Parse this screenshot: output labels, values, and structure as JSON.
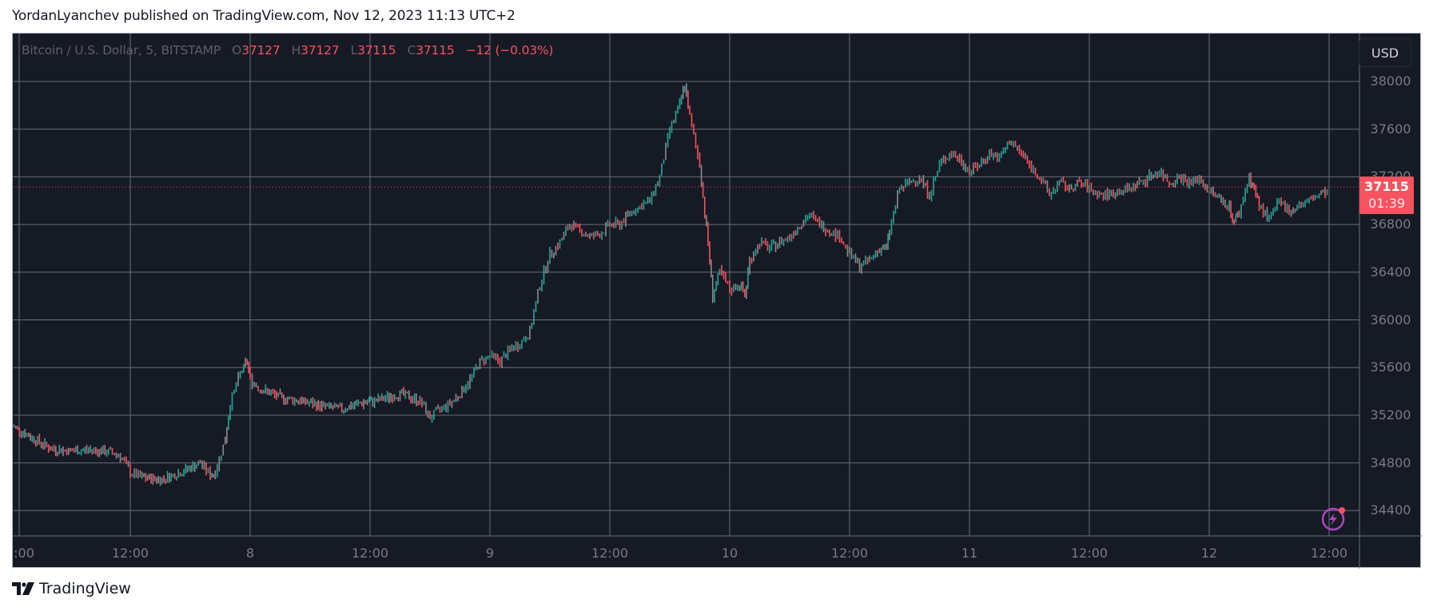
{
  "publisher_line": "YordanLyanchev published on TradingView.com, Nov 12, 2023 11:13 UTC+2",
  "legend": {
    "symbol": "Bitcoin / U.S. Dollar, 5, BITSTAMP",
    "open_key": "O",
    "open": "37127",
    "high_key": "H",
    "high": "37127",
    "low_key": "L",
    "low": "37115",
    "close_key": "C",
    "close": "37115",
    "change": "−12 (−0.03%)"
  },
  "currency_button": "USD",
  "last_price_tag": {
    "price": "37115",
    "countdown": "01:39"
  },
  "footer_brand": "TradingView",
  "icons": {
    "logo": "tradingview-logo-icon",
    "lightning": "lightning-icon"
  },
  "colors": {
    "background": "#161a25",
    "grid": "#6b6f7a",
    "up": "#26a69a",
    "down": "#f7525f",
    "neutral": "#8c8c8c",
    "axis_text": "#787b86",
    "price_tag": "#f7525f",
    "lightning": "#ab47bc"
  },
  "chart_data": {
    "type": "candlestick",
    "title": "Bitcoin / U.S. Dollar, 5, BITSTAMP",
    "interval": "5",
    "exchange": "BITSTAMP",
    "currency": "USD",
    "xlabel": "",
    "ylabel": "",
    "y_ticks": [
      38000,
      37600,
      37200,
      36800,
      36400,
      36000,
      35600,
      35200,
      34800,
      34400
    ],
    "ylim": [
      34200,
      38350
    ],
    "x_ticks": [
      ":00",
      "12:00",
      "8",
      "12:00",
      "9",
      "12:00",
      "10",
      "12:00",
      "11",
      "12:00",
      "12",
      "12:00"
    ],
    "grid": true,
    "last": {
      "open": 37127,
      "high": 37127,
      "low": 37115,
      "close": 37115,
      "change": -12,
      "change_pct": -0.03
    },
    "current_price": 37115,
    "approx_path_hours_from_nov7_0000": [
      [
        0,
        35120
      ],
      [
        2,
        35020
      ],
      [
        4,
        34920
      ],
      [
        6,
        34900
      ],
      [
        8,
        34910
      ],
      [
        10,
        34890
      ],
      [
        11,
        34860
      ],
      [
        12,
        34720
      ],
      [
        13,
        34680
      ],
      [
        15,
        34660
      ],
      [
        17,
        34720
      ],
      [
        19,
        34800
      ],
      [
        20,
        34700
      ],
      [
        20.5,
        34720
      ],
      [
        21.5,
        35000
      ],
      [
        22,
        35300
      ],
      [
        23,
        35550
      ],
      [
        23.7,
        35650
      ],
      [
        24,
        35500
      ],
      [
        25,
        35420
      ],
      [
        27,
        35350
      ],
      [
        29,
        35320
      ],
      [
        31,
        35280
      ],
      [
        33,
        35250
      ],
      [
        35,
        35300
      ],
      [
        37,
        35330
      ],
      [
        39,
        35380
      ],
      [
        41,
        35320
      ],
      [
        42,
        35180
      ],
      [
        43,
        35250
      ],
      [
        44,
        35300
      ],
      [
        45,
        35380
      ],
      [
        46,
        35500
      ],
      [
        47,
        35650
      ],
      [
        48,
        35700
      ],
      [
        49,
        35650
      ],
      [
        50,
        35750
      ],
      [
        51,
        35800
      ],
      [
        52,
        35900
      ],
      [
        53,
        36300
      ],
      [
        54,
        36550
      ],
      [
        55,
        36650
      ],
      [
        56,
        36800
      ],
      [
        57,
        36750
      ],
      [
        58,
        36700
      ],
      [
        59,
        36720
      ],
      [
        60,
        36800
      ],
      [
        61,
        36800
      ],
      [
        62,
        36900
      ],
      [
        63,
        36950
      ],
      [
        64,
        37000
      ],
      [
        65,
        37200
      ],
      [
        66,
        37600
      ],
      [
        67,
        37800
      ],
      [
        67.5,
        37980
      ],
      [
        68,
        37700
      ],
      [
        69,
        37300
      ],
      [
        69.5,
        36900
      ],
      [
        70,
        36500
      ],
      [
        70.3,
        36200
      ],
      [
        71,
        36400
      ],
      [
        72,
        36250
      ],
      [
        73,
        36300
      ],
      [
        73.5,
        36200
      ],
      [
        74,
        36500
      ],
      [
        75,
        36650
      ],
      [
        76,
        36600
      ],
      [
        77,
        36650
      ],
      [
        78,
        36700
      ],
      [
        79,
        36800
      ],
      [
        80,
        36880
      ],
      [
        81,
        36800
      ],
      [
        82,
        36750
      ],
      [
        83,
        36700
      ],
      [
        84,
        36550
      ],
      [
        85,
        36450
      ],
      [
        86,
        36500
      ],
      [
        87,
        36600
      ],
      [
        87.7,
        36600
      ],
      [
        88,
        36750
      ],
      [
        89,
        37100
      ],
      [
        90,
        37150
      ],
      [
        91,
        37200
      ],
      [
        92,
        37050
      ],
      [
        93,
        37300
      ],
      [
        94,
        37400
      ],
      [
        95,
        37350
      ],
      [
        96,
        37250
      ],
      [
        97,
        37300
      ],
      [
        98,
        37400
      ],
      [
        99,
        37350
      ],
      [
        100,
        37500
      ],
      [
        101,
        37420
      ],
      [
        102,
        37300
      ],
      [
        103,
        37200
      ],
      [
        104,
        37050
      ],
      [
        105,
        37150
      ],
      [
        106,
        37100
      ],
      [
        107,
        37150
      ],
      [
        108,
        37100
      ],
      [
        109,
        37050
      ],
      [
        110,
        37050
      ],
      [
        111,
        37080
      ],
      [
        112,
        37100
      ],
      [
        113,
        37150
      ],
      [
        114,
        37200
      ],
      [
        115,
        37250
      ],
      [
        116,
        37150
      ],
      [
        117,
        37200
      ],
      [
        118,
        37150
      ],
      [
        119,
        37180
      ],
      [
        120,
        37080
      ],
      [
        121,
        37020
      ],
      [
        122,
        36950
      ],
      [
        122.5,
        36820
      ],
      [
        123,
        36900
      ],
      [
        124,
        37200
      ],
      [
        124.5,
        37100
      ],
      [
        125,
        36950
      ],
      [
        126,
        36850
      ],
      [
        127,
        36980
      ],
      [
        128,
        36920
      ],
      [
        129,
        36960
      ],
      [
        130,
        37000
      ],
      [
        131,
        37050
      ],
      [
        132,
        37080
      ],
      [
        133,
        37150
      ],
      [
        134,
        37200
      ],
      [
        135,
        37180
      ],
      [
        136,
        37120
      ],
      [
        136.5,
        37115
      ]
    ]
  }
}
